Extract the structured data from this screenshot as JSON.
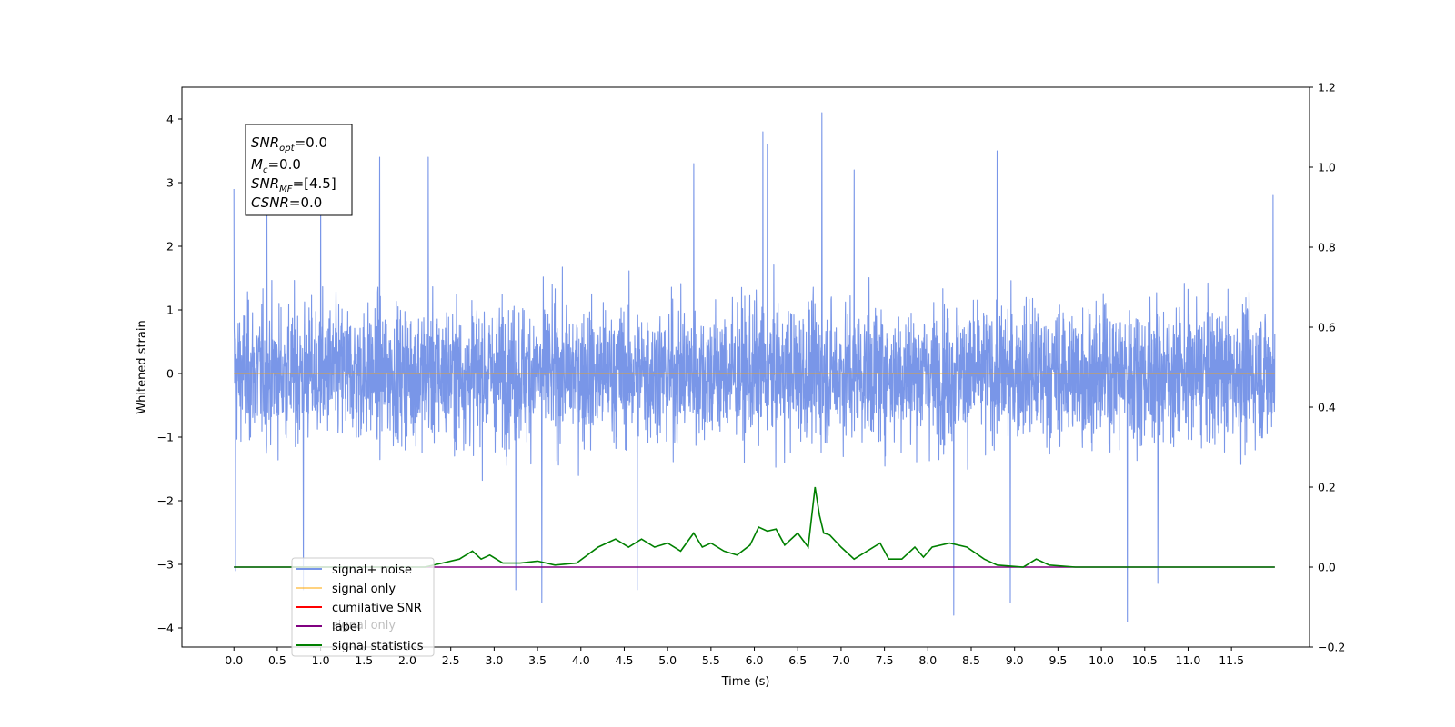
{
  "chart_data": {
    "type": "line",
    "xlabel": "Time (s)",
    "ylabel": "Whitened strain",
    "xlim": [
      -0.6,
      12.4
    ],
    "ylim": [
      -4.3,
      4.5
    ],
    "y2lim": [
      -0.2,
      1.2
    ],
    "x_ticks": [
      "0.0",
      "0.5",
      "1.0",
      "1.5",
      "2.0",
      "2.5",
      "3.0",
      "3.5",
      "4.0",
      "4.5",
      "5.0",
      "5.5",
      "6.0",
      "6.5",
      "7.0",
      "7.5",
      "8.0",
      "8.5",
      "9.0",
      "9.5",
      "10.0",
      "10.5",
      "11.0",
      "11.5"
    ],
    "y_ticks": [
      "4",
      "3",
      "2",
      "1",
      "0",
      "−1",
      "−2",
      "−3",
      "−4"
    ],
    "y2_ticks": [
      "1.2",
      "1.0",
      "0.8",
      "0.6",
      "0.4",
      "0.2",
      "0.0",
      "−0.2"
    ],
    "annotation": {
      "snr_opt": {
        "base": "SNR",
        "sub": "opt",
        "value": "=0.0"
      },
      "mc": {
        "base": "M",
        "sub": "c",
        "value": "=0.0"
      },
      "snr_mf": {
        "base": "SNR",
        "sub": "MF",
        "value": "=[4.5]"
      },
      "csnr": {
        "base": "CSNR",
        "sub": "",
        "value": "=0.0"
      }
    },
    "legend": {
      "placement": "lower-left",
      "entries": [
        "signal+ noise",
        "signal only",
        "cumilative SNR",
        "label",
        "signal statistics"
      ],
      "overlapped_text": "signal only"
    },
    "series": [
      {
        "name": "signal+ noise",
        "color": "#7996e8",
        "axis": "left",
        "description_values": "dense white noise, envelope approx ±2, extremes from −3.9 to 4.1",
        "x": [
          0.0,
          12.0
        ],
        "envelope": [
          -2.0,
          2.0
        ],
        "peaks": [
          {
            "x": 0.0,
            "y": 2.9
          },
          {
            "x": 0.02,
            "y": -3.1
          },
          {
            "x": 0.38,
            "y": 2.8
          },
          {
            "x": 0.8,
            "y": -3.4
          },
          {
            "x": 1.0,
            "y": 3.2
          },
          {
            "x": 1.68,
            "y": 3.4
          },
          {
            "x": 2.24,
            "y": 3.4
          },
          {
            "x": 3.25,
            "y": -3.4
          },
          {
            "x": 3.55,
            "y": -3.6
          },
          {
            "x": 4.65,
            "y": -3.4
          },
          {
            "x": 5.3,
            "y": 3.3
          },
          {
            "x": 6.1,
            "y": 3.8
          },
          {
            "x": 6.15,
            "y": 3.6
          },
          {
            "x": 6.78,
            "y": 4.1
          },
          {
            "x": 7.15,
            "y": 3.2
          },
          {
            "x": 8.3,
            "y": -3.8
          },
          {
            "x": 8.8,
            "y": 3.5
          },
          {
            "x": 8.95,
            "y": -3.6
          },
          {
            "x": 10.3,
            "y": -3.9
          },
          {
            "x": 10.65,
            "y": -3.3
          },
          {
            "x": 11.98,
            "y": 2.8
          }
        ]
      },
      {
        "name": "signal only",
        "color": "#ffa500",
        "axis": "left",
        "x": [
          0.0,
          12.0
        ],
        "y": [
          0.0,
          0.0
        ]
      },
      {
        "name": "label",
        "color": "#800080",
        "axis": "right",
        "x": [
          0.0,
          12.0
        ],
        "y": [
          0.0,
          0.0
        ]
      },
      {
        "name": "signal statistics",
        "color": "#008000",
        "axis": "right",
        "x": [
          0.0,
          2.2,
          2.4,
          2.6,
          2.75,
          2.85,
          2.95,
          3.1,
          3.3,
          3.5,
          3.7,
          3.95,
          4.2,
          4.4,
          4.55,
          4.7,
          4.85,
          5.0,
          5.15,
          5.3,
          5.4,
          5.5,
          5.65,
          5.8,
          5.95,
          6.05,
          6.15,
          6.25,
          6.35,
          6.5,
          6.62,
          6.7,
          6.75,
          6.8,
          6.87,
          7.0,
          7.15,
          7.3,
          7.45,
          7.55,
          7.7,
          7.85,
          7.95,
          8.05,
          8.25,
          8.45,
          8.65,
          8.8,
          9.1,
          9.25,
          9.3,
          9.4,
          9.7,
          12.0
        ],
        "y": [
          0.0,
          0.0,
          0.01,
          0.02,
          0.04,
          0.02,
          0.03,
          0.01,
          0.01,
          0.015,
          0.005,
          0.01,
          0.05,
          0.07,
          0.05,
          0.07,
          0.05,
          0.06,
          0.04,
          0.085,
          0.05,
          0.06,
          0.04,
          0.03,
          0.055,
          0.1,
          0.09,
          0.095,
          0.055,
          0.085,
          0.05,
          0.2,
          0.13,
          0.085,
          0.08,
          0.05,
          0.02,
          0.04,
          0.06,
          0.02,
          0.02,
          0.05,
          0.025,
          0.05,
          0.06,
          0.05,
          0.02,
          0.005,
          0.0,
          0.02,
          0.015,
          0.005,
          0.0,
          0.0
        ]
      }
    ]
  }
}
